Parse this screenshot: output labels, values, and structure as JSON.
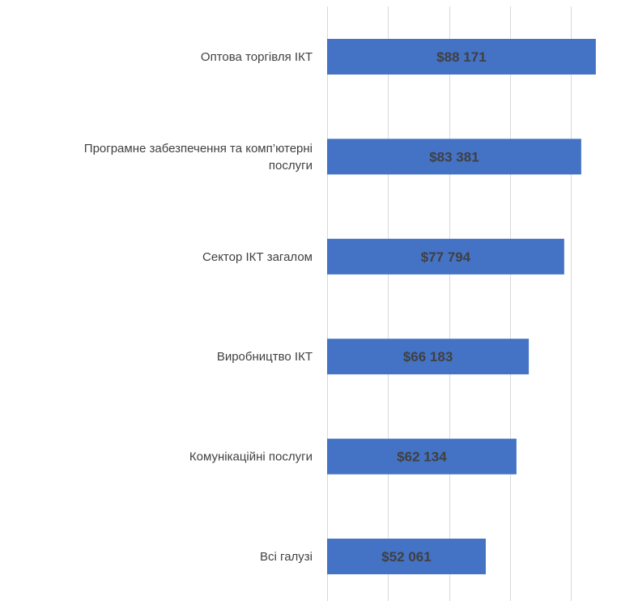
{
  "chart_data": {
    "type": "bar",
    "orientation": "horizontal",
    "categories": [
      "Оптова торгівля ІКТ",
      "Програмне забезпечення та комп’ютерні послуги",
      "Сектор ІКТ загалом",
      "Виробництво ІКТ",
      "Комунікаційні послуги",
      "Всі галузі"
    ],
    "category_label_lines": [
      [
        "Оптова торгівля ІКТ"
      ],
      [
        "Програмне забезпечення та комп’ютерні",
        "послуги"
      ],
      [
        "Сектор ІКТ загалом"
      ],
      [
        "Виробництво ІКТ"
      ],
      [
        "Комунікаційні послуги"
      ],
      [
        "Всі галузі"
      ]
    ],
    "values": [
      88171,
      83381,
      77794,
      66183,
      62134,
      52061
    ],
    "data_labels": [
      "$88 171",
      "$83 381",
      "$77 794",
      "$66 183",
      "$62 134",
      "$52 061"
    ],
    "xlim": [
      0,
      100000
    ],
    "grid": true,
    "legend": "none",
    "bar_color": "#4472c4",
    "grid_color": "#d9d9d9",
    "text_color": "#404040"
  }
}
